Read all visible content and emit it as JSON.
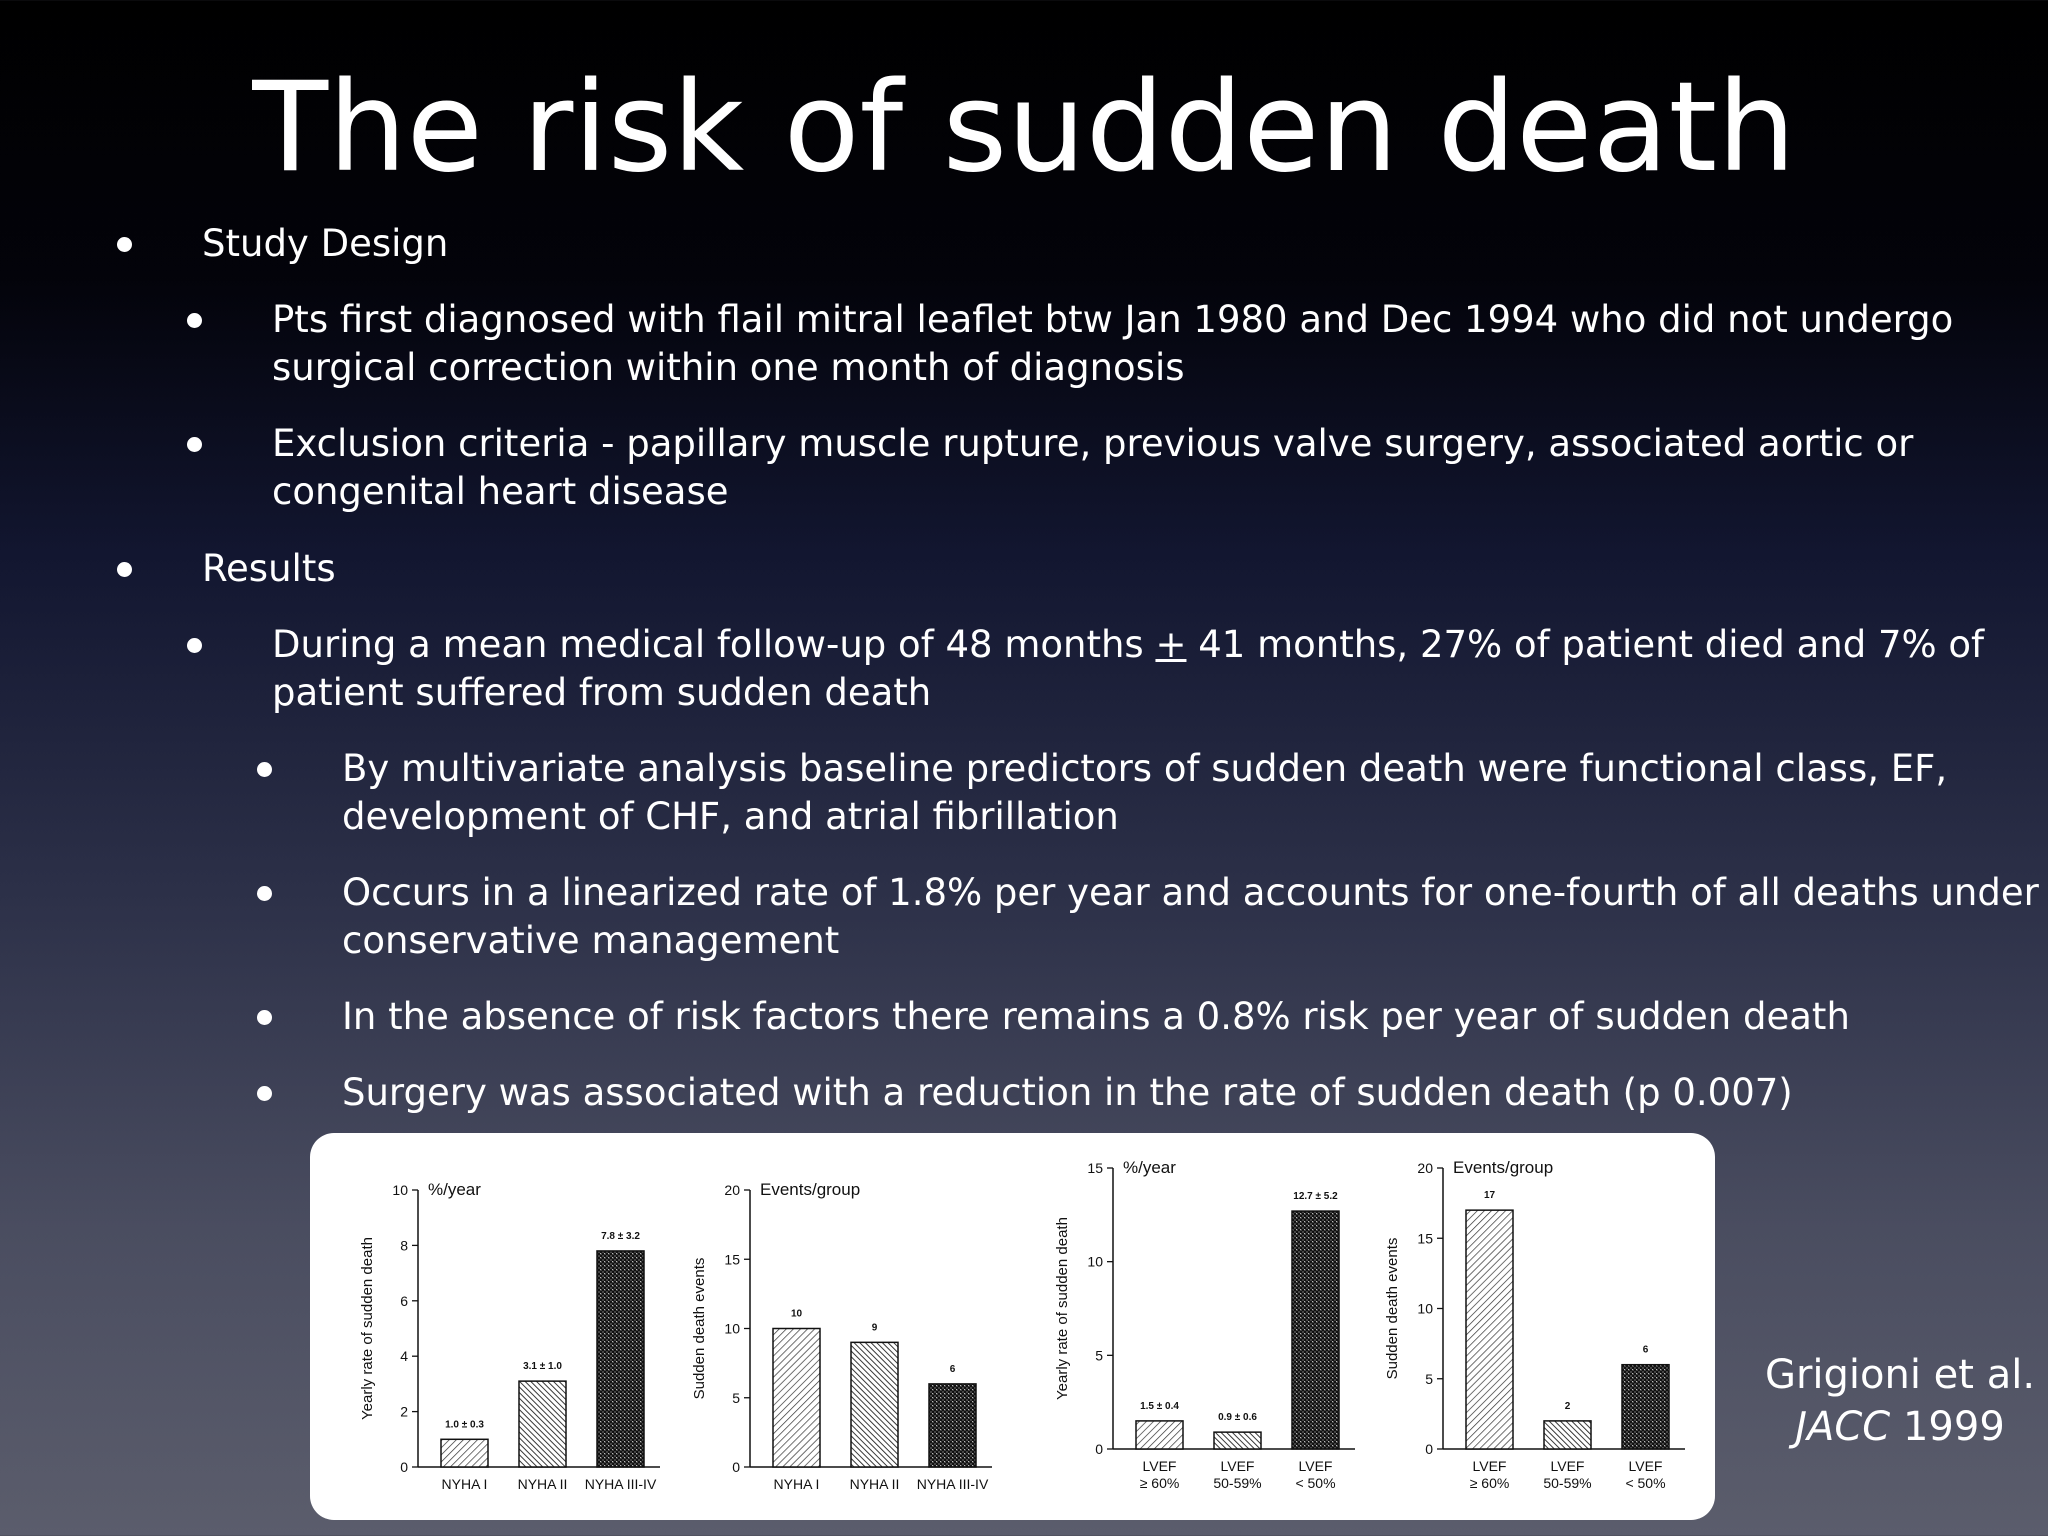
{
  "slide": {
    "title": "The risk of sudden death",
    "bullets": {
      "study_design": "Study Design",
      "pts": "Pts first diagnosed with flail mitral leaflet btw Jan 1980 and Dec 1994 who did not undergo",
      "pts_cont": "surgical correction within one month of diagnosis",
      "exclusion": "Exclusion criteria - papillary muscle rupture, previous valve surgery, associated aortic or",
      "exclusion_cont": "congenital heart disease",
      "results": "Results",
      "followup_a": "During a mean medical follow-up of 48 months ",
      "followup_pm": "+",
      "followup_b": " 41 months, 27% of patient died and 7% of",
      "followup_cont": "patient suffered from sudden death",
      "multivariate": "By multivariate analysis baseline predictors of sudden death were functional class, EF,",
      "multivariate_cont": "development of CHF, and atrial fibrillation",
      "rate": "Occurs in a linearized rate of 1.8% per year and accounts for one-fourth of all deaths under",
      "rate_cont": "conservative management",
      "absence": "In the absence of risk factors there remains a 0.8% risk per year of sudden death",
      "surgery": "Surgery was associated with a reduction in the rate of sudden death (p 0.007)"
    },
    "citation": {
      "authors": "Grigioni et al.",
      "journal": "JACC",
      "year": " 1999"
    }
  },
  "chart_data": [
    {
      "type": "bar",
      "title": "%/year",
      "ylabel": "Yearly rate of sudden death",
      "categories": [
        [
          "NYHA I"
        ],
        [
          "NYHA II"
        ],
        [
          "NYHA III-IV"
        ]
      ],
      "values": [
        1.0,
        3.1,
        7.8
      ],
      "labels": [
        "1.0 ± 0.3",
        "3.1 ± 1.0",
        "7.8 ± 3.2"
      ],
      "ylim": [
        0,
        10
      ],
      "yticks": [
        0,
        2,
        4,
        6,
        8,
        10
      ]
    },
    {
      "type": "bar",
      "title": "Events/group",
      "ylabel": "Sudden death events",
      "categories": [
        [
          "NYHA I"
        ],
        [
          "NYHA II"
        ],
        [
          "NYHA III-IV"
        ]
      ],
      "values": [
        10,
        9,
        6
      ],
      "labels": [
        "10",
        "9",
        "6"
      ],
      "ylim": [
        0,
        20
      ],
      "yticks": [
        0,
        5,
        10,
        15,
        20
      ]
    },
    {
      "type": "bar",
      "title": "%/year",
      "ylabel": "Yearly rate of sudden death",
      "categories": [
        [
          "LVEF",
          "≥ 60%"
        ],
        [
          "LVEF",
          "50-59%"
        ],
        [
          "LVEF",
          "< 50%"
        ]
      ],
      "values": [
        1.5,
        0.9,
        12.7
      ],
      "labels": [
        "1.5 ± 0.4",
        "0.9 ± 0.6",
        "12.7 ± 5.2"
      ],
      "ylim": [
        0,
        15
      ],
      "yticks": [
        0,
        5,
        10,
        15
      ]
    },
    {
      "type": "bar",
      "title": "Events/group",
      "ylabel": "Sudden death events",
      "categories": [
        [
          "LVEF",
          "≥ 60%"
        ],
        [
          "LVEF",
          "50-59%"
        ],
        [
          "LVEF",
          "< 50%"
        ]
      ],
      "values": [
        17,
        2,
        6
      ],
      "labels": [
        "17",
        "2",
        "6"
      ],
      "ylim": [
        0,
        20
      ],
      "yticks": [
        0,
        5,
        10,
        15,
        20
      ]
    }
  ]
}
